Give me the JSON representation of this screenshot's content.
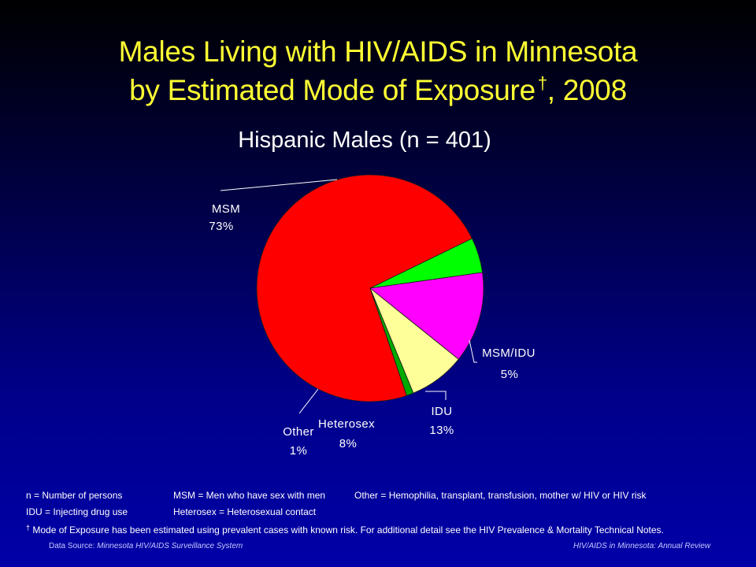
{
  "title_line1": "Males Living with HIV/AIDS in Minnesota",
  "title_line2_main": "by Estimated Mode of Exposure",
  "title_dagger": "†",
  "title_year": ", 2008",
  "colors": {
    "title": "#ffff33",
    "MSM": "#ff0000",
    "MSM/IDU": "#00ff00",
    "IDU": "#ff00ff",
    "Heterosex": "#ffff99",
    "Other": "#00aa00"
  },
  "chart_data": {
    "type": "pie",
    "title": "Hispanic Males (n = 401)",
    "slices": [
      {
        "name": "MSM",
        "value": 73,
        "label": "73%"
      },
      {
        "name": "MSM/IDU",
        "value": 5,
        "label": "5%"
      },
      {
        "name": "IDU",
        "value": 13,
        "label": "13%"
      },
      {
        "name": "Heterosex",
        "value": 8,
        "label": "8%"
      },
      {
        "name": "Other",
        "value": 1,
        "label": "1%"
      }
    ]
  },
  "footnotes": {
    "n_def": "n = Number of persons",
    "msm_def": "MSM = Men who have sex with men",
    "other_def": "Other = Hemophilia, transplant, transfusion, mother w/ HIV or HIV risk",
    "idu_def": "IDU = Injecting drug use",
    "hetero_def": "Heterosex = Heterosexual contact",
    "dagger": "†",
    "mode_note": "Mode of Exposure has been estimated using prevalent cases with known risk. For additional detail see the HIV Prevalence & Mortality Technical Notes."
  },
  "source": {
    "label": "Data Source:",
    "name": "Minnesota HIV/AIDS Surveillance System",
    "publication": "HIV/AIDS in Minnesota: Annual Review"
  }
}
